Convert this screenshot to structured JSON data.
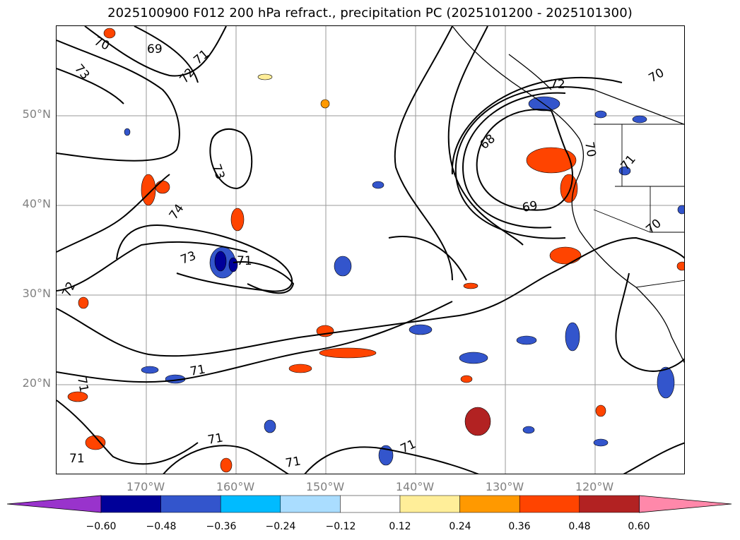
{
  "title": "2025100900 F012 200 hPa refract., precipitation PC (2025101200 - 2025101300)",
  "lat_labels": [
    "50°N",
    "40°N",
    "30°N",
    "20°N"
  ],
  "lon_labels": [
    "170°W",
    "160°W",
    "150°W",
    "140°W",
    "130°W",
    "120°W"
  ],
  "contour_labels": [
    "70",
    "69",
    "73",
    "71",
    "72",
    "73",
    "74",
    "73",
    "71",
    "72",
    "71",
    "71",
    "71",
    "71",
    "71",
    "71",
    "68",
    "72",
    "70",
    "71",
    "69",
    "70",
    "70"
  ],
  "colorbar": {
    "ticks": [
      "−0.60",
      "−0.48",
      "−0.36",
      "−0.24",
      "−0.12",
      "0.12",
      "0.24",
      "0.36",
      "0.48",
      "0.60"
    ],
    "colors": [
      "#9933cc",
      "#000099",
      "#3355cc",
      "#00bbff",
      "#aaddff",
      "#ffffff",
      "#ffee99",
      "#ff9900",
      "#ff4400",
      "#b22222",
      "#ff88aa"
    ]
  }
}
